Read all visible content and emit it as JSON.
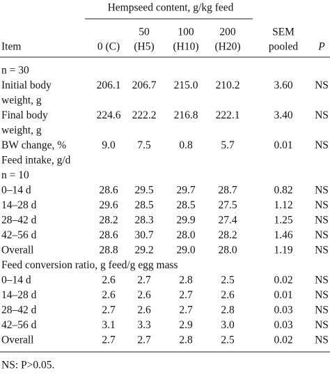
{
  "header": {
    "group": "Hempseed content, g/kg feed",
    "columns": [
      [
        "Item"
      ],
      [
        "0 (C)"
      ],
      [
        "50",
        "(H5)"
      ],
      [
        "100",
        "(H10)"
      ],
      [
        "200",
        "(H20)"
      ],
      [
        "SEM",
        "pooled"
      ],
      [
        "P"
      ]
    ]
  },
  "table": {
    "rows": [
      {
        "label": [
          "n = 30"
        ]
      },
      {
        "label": [
          "Initial body",
          "weight, g"
        ],
        "cells": [
          "206.1",
          "206.7",
          "215.0",
          "210.2",
          "3.60",
          "NS"
        ]
      },
      {
        "label": [
          "Final body",
          "weight, g"
        ],
        "cells": [
          "224.6",
          "222.2",
          "216.8",
          "222.1",
          "3.40",
          "NS"
        ]
      },
      {
        "label": [
          "BW change, %"
        ],
        "cells": [
          "9.0",
          "7.5",
          "0.8",
          "5.7",
          "0.01",
          "NS"
        ]
      },
      {
        "label": [
          "Feed intake, g/d"
        ]
      },
      {
        "label": [
          "n = 10"
        ]
      },
      {
        "label": [
          "0–14 d"
        ],
        "cells": [
          "28.6",
          "29.5",
          "29.7",
          "28.7",
          "0.82",
          "NS"
        ]
      },
      {
        "label": [
          "14–28 d"
        ],
        "cells": [
          "29.6",
          "28.5",
          "28.5",
          "27.5",
          "1.12",
          "NS"
        ]
      },
      {
        "label": [
          "28–42 d"
        ],
        "cells": [
          "28.2",
          "28.3",
          "29.9",
          "27.4",
          "1.25",
          "NS"
        ]
      },
      {
        "label": [
          "42–56 d"
        ],
        "cells": [
          "28.6",
          "30.7",
          "28.0",
          "28.2",
          "1.46",
          "NS"
        ]
      },
      {
        "label": [
          "Overall"
        ],
        "cells": [
          "28.8",
          "29.2",
          "29.0",
          "28.0",
          "1.19",
          "NS"
        ]
      },
      {
        "label": [
          "Feed conversion ratio, g feed/g egg mass"
        ]
      },
      {
        "label": [
          "0–14 d"
        ],
        "cells": [
          "2.6",
          "2.7",
          "2.8",
          "2.5",
          "0.02",
          "NS"
        ]
      },
      {
        "label": [
          "14–28 d"
        ],
        "cells": [
          "2.6",
          "2.6",
          "2.7",
          "2.6",
          "0.01",
          "NS"
        ]
      },
      {
        "label": [
          "28–42 d"
        ],
        "cells": [
          "2.7",
          "2.6",
          "2.7",
          "2.8",
          "0.03",
          "NS"
        ]
      },
      {
        "label": [
          "42–56 d"
        ],
        "cells": [
          "3.1",
          "3.3",
          "2.9",
          "3.0",
          "0.03",
          "NS"
        ]
      },
      {
        "label": [
          "Overall"
        ],
        "cells": [
          "2.7",
          "2.7",
          "2.8",
          "2.5",
          "0.02",
          "NS"
        ]
      }
    ]
  },
  "footnote": "NS: P>0.05."
}
